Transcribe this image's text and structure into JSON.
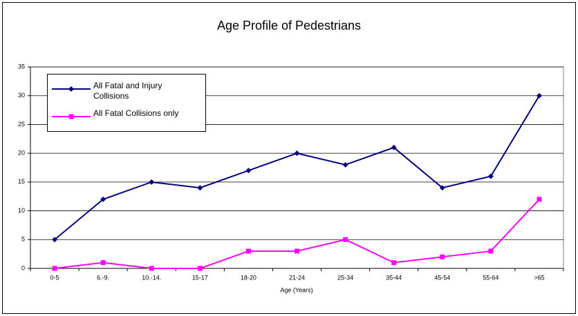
{
  "chart_data": {
    "type": "line",
    "title": "Age Profile of Pedestrians",
    "x_label": "Age (Years)",
    "categories": [
      "0-5",
      "6.-9.",
      "10.-14.",
      "15-17",
      "18-20",
      "21-24",
      "25-34",
      "35-44",
      "45-54",
      "55-64",
      ">65"
    ],
    "series": [
      {
        "name": "All Fatal and Injury Collisions",
        "color": "#000080",
        "marker": "diamond",
        "values": [
          5,
          12,
          15,
          14,
          17,
          20,
          18,
          21,
          14,
          16,
          30
        ]
      },
      {
        "name": "All Fatal Collisions only",
        "color": "#ff00ff",
        "marker": "square",
        "values": [
          0,
          1,
          0,
          0,
          3,
          3,
          5,
          1,
          2,
          3,
          12
        ]
      }
    ],
    "ylim": [
      0,
      35
    ],
    "yticks": [
      0,
      5,
      10,
      15,
      20,
      25,
      30,
      35
    ],
    "grid": true,
    "legend": "top-left"
  }
}
